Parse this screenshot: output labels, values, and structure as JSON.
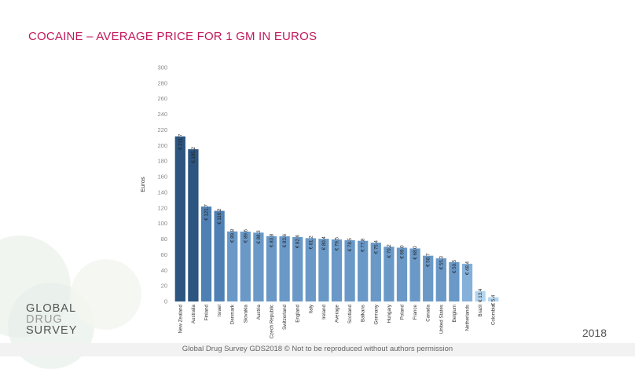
{
  "slide": {
    "title": "COCAINE – AVERAGE PRICE FOR 1 GM IN EUROS",
    "logo_line1": "GLOBAL",
    "logo_line2": "DRUG",
    "logo_line3": "SURVEY",
    "year": "2018",
    "footer": "Global Drug Survey GDS2018 © Not to be reproduced without authors permission"
  },
  "chart_data": {
    "type": "bar",
    "title": "",
    "xlabel": "",
    "ylabel": "Euros",
    "ylim": [
      0,
      300
    ],
    "yticks": [
      0,
      20,
      40,
      60,
      80,
      100,
      120,
      140,
      160,
      180,
      200,
      220,
      240,
      260,
      280,
      300
    ],
    "grid": false,
    "categories": [
      "New Zealand",
      "Australia",
      "Finland",
      "Israel",
      "Denmark",
      "Slovakia",
      "Austria",
      "Czech Republic",
      "Switzerland",
      "England",
      "Italy",
      "Ireland",
      "Average",
      "Scotland",
      "Balkans",
      "Germany",
      "Hungary",
      "Poland",
      "France",
      "Canada",
      "United States",
      "Belgium",
      "Netherlands",
      "Brazil",
      "Colombia"
    ],
    "values": [
      211.7,
      195.2,
      121.7,
      116.2,
      89.8,
      89.6,
      88.3,
      83.8,
      83.6,
      82.6,
      81.2,
      80.4,
      79.5,
      78.5,
      77.8,
      75.4,
      70.2,
      69.0,
      68.0,
      58.7,
      55.3,
      50.5,
      48.4,
      13.4,
      5.4
    ],
    "data_labels": [
      "€ 211.7",
      "€ 195.2",
      "€ 121.7",
      "€ 116.2",
      "€ 89.8",
      "€ 89.6",
      "€ 88.3",
      "€ 83.8",
      "€ 83.6",
      "€ 82.6",
      "€ 81.2",
      "€ 80.4",
      "€ 79.5",
      "€ 78.5",
      "€ 77.8",
      "€ 75.4",
      "€ 70.2",
      "€ 69.0",
      "€ 68.0",
      "€ 58.7",
      "€ 55.3",
      "€ 50.5",
      "€ 48.4",
      "€ 13.4",
      "€ 5.4"
    ],
    "colors": [
      "#2c5580",
      "#2c5580",
      "#4f80b4",
      "#4f80b4",
      "#6a99c8",
      "#6a99c8",
      "#6a99c8",
      "#6a99c8",
      "#6a99c8",
      "#6a99c8",
      "#6a99c8",
      "#6a99c8",
      "#6a99c8",
      "#6a99c8",
      "#6a99c8",
      "#6a99c8",
      "#6a99c8",
      "#6a99c8",
      "#6a99c8",
      "#6a99c8",
      "#6a99c8",
      "#6a99c8",
      "#84b0d9",
      "#b3d4ee",
      "#b3d4ee"
    ]
  }
}
